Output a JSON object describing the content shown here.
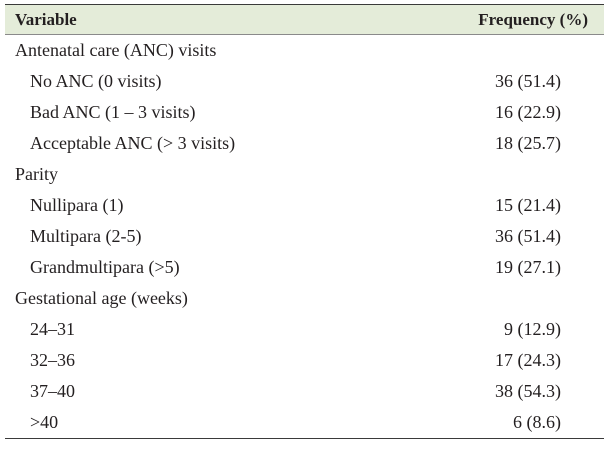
{
  "table": {
    "headers": {
      "variable": "Variable",
      "frequency": "Frequency (%)"
    },
    "sections": [
      {
        "title": "Antenatal care (ANC) visits",
        "rows": [
          {
            "label": "No ANC (0 visits)",
            "value": "36 (51.4)"
          },
          {
            "label": "Bad ANC (1 – 3 visits)",
            "value": "16 (22.9)"
          },
          {
            "label": "Acceptable ANC (> 3 visits)",
            "value": "18 (25.7)"
          }
        ]
      },
      {
        "title": "Parity",
        "rows": [
          {
            "label": "Nullipara (1)",
            "value": "15 (21.4)"
          },
          {
            "label": "Multipara (2-5)",
            "value": "36 (51.4)"
          },
          {
            "label": "Grandmultipara (>5)",
            "value": "19 (27.1)"
          }
        ]
      },
      {
        "title": "Gestational age (weeks)",
        "rows": [
          {
            "label": "24–31",
            "value": "9 (12.9)"
          },
          {
            "label": "32–36",
            "value": "17 (24.3)"
          },
          {
            "label": "37–40",
            "value": "38 (54.3)"
          },
          {
            "label": ">40",
            "value": "6 (8.6)"
          }
        ]
      }
    ]
  },
  "colors": {
    "header_bg": "#e4ecd9",
    "text": "#231f20",
    "rule": "#3a3a3a"
  }
}
